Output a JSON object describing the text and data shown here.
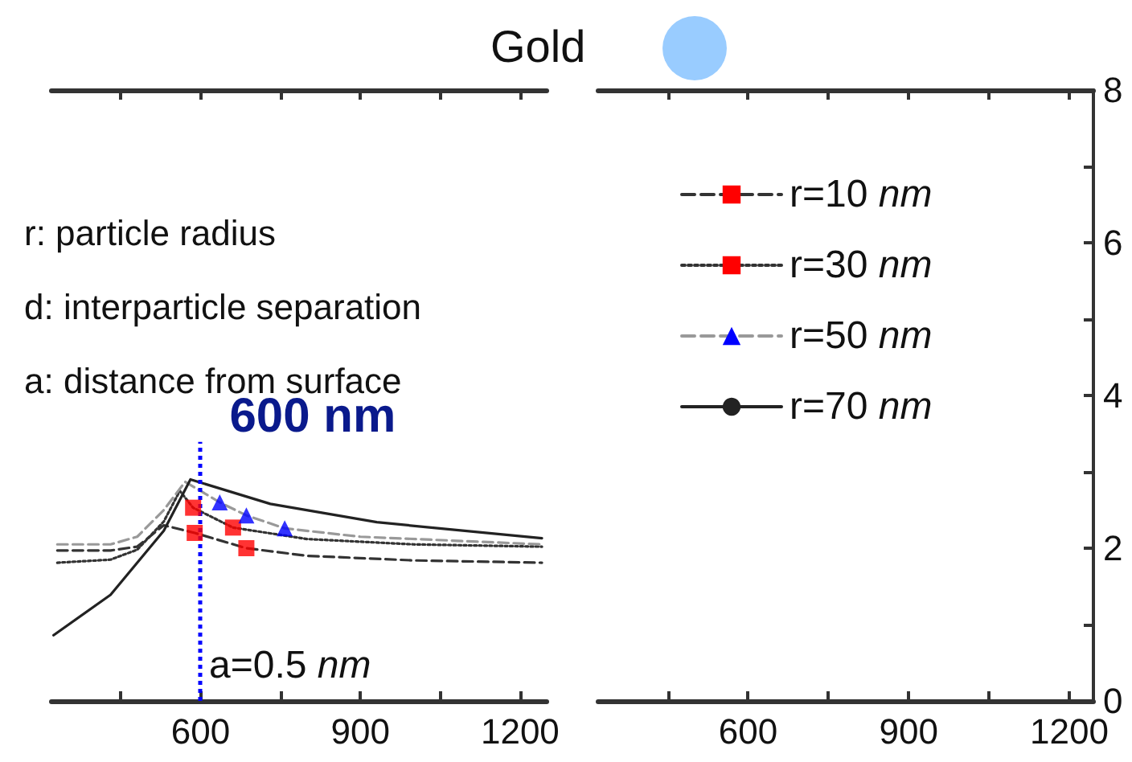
{
  "chart_data": [
    {
      "type": "line",
      "title": "Gold",
      "annotations": [
        "r: particle radius",
        "d: interparticle separation",
        "a: distance from surface",
        "a=0.5 nm"
      ],
      "xlim": [
        320,
        1250
      ],
      "xticks": [
        {
          "value": 450,
          "label": null
        },
        600,
        {
          "value": 750,
          "label": null
        },
        900,
        {
          "value": 1050,
          "label": null
        },
        1200
      ],
      "ylim": [
        0,
        8
      ],
      "yticks": [
        0,
        2,
        4,
        6,
        8
      ],
      "tick_labels": "x",
      "grid": false,
      "legend": "right",
      "ref_lines": [
        {
          "axis": "x",
          "value": 600,
          "label": "600 nm",
          "color": "#0000ff",
          "line_style": "dotted"
        }
      ],
      "series": [
        {
          "name": "r=10 nm",
          "color": "#333333",
          "line_style": "dashed",
          "x": [
            331,
            431,
            481,
            531,
            589,
            686,
            800,
            1000,
            1241
          ],
          "values": [
            1.97,
            1.97,
            2.02,
            2.3,
            2.2,
            2.0,
            1.9,
            1.84,
            1.81
          ]
        },
        {
          "type": "scatter",
          "marker": "square",
          "color": "#ff0000",
          "x": [
            589,
            686
          ],
          "values": [
            2.2,
            2.0
          ]
        },
        {
          "name": "r=30 nm",
          "color": "#333333",
          "line_style": "dotted",
          "x": [
            331,
            431,
            481,
            531,
            561,
            586,
            661,
            800,
            1000,
            1241
          ],
          "values": [
            1.81,
            1.85,
            1.98,
            2.35,
            2.75,
            2.53,
            2.27,
            2.12,
            2.05,
            2.02
          ]
        },
        {
          "type": "scatter",
          "marker": "square",
          "color": "#ff0000",
          "x": [
            586,
            661
          ],
          "values": [
            2.53,
            2.27
          ]
        },
        {
          "name": "r=50 nm",
          "color": "#999999",
          "line_style": "dashed",
          "x": [
            331,
            431,
            481,
            531,
            571,
            636,
            686,
            758,
            900,
            1241
          ],
          "values": [
            2.05,
            2.05,
            2.15,
            2.5,
            2.87,
            2.6,
            2.43,
            2.26,
            2.15,
            2.05
          ]
        },
        {
          "type": "scatter",
          "marker": "triangle",
          "color": "#0000ff",
          "x": [
            636,
            686,
            758
          ],
          "values": [
            2.6,
            2.43,
            2.26
          ]
        },
        {
          "name": "r=70 nm",
          "color": "#222222",
          "line_style": "solid",
          "x": [
            324,
            431,
            531,
            581,
            731,
            931,
            1241
          ],
          "values": [
            0.86,
            1.39,
            2.23,
            2.9,
            2.58,
            2.34,
            2.13
          ]
        }
      ]
    },
    {
      "type": "line",
      "xlim": [
        320,
        1245
      ],
      "xticks": [
        {
          "value": 450,
          "label": null
        },
        600,
        {
          "value": 750,
          "label": null
        },
        900,
        {
          "value": 1050,
          "label": null
        },
        1200
      ],
      "ylim": [
        0,
        8
      ],
      "yticks": [
        0,
        {
          "value": 1,
          "label": null
        },
        2,
        {
          "value": 3,
          "label": null
        },
        4,
        {
          "value": 5,
          "label": null
        },
        6,
        {
          "value": 7,
          "label": null
        },
        8
      ],
      "grid": false
    }
  ]
}
